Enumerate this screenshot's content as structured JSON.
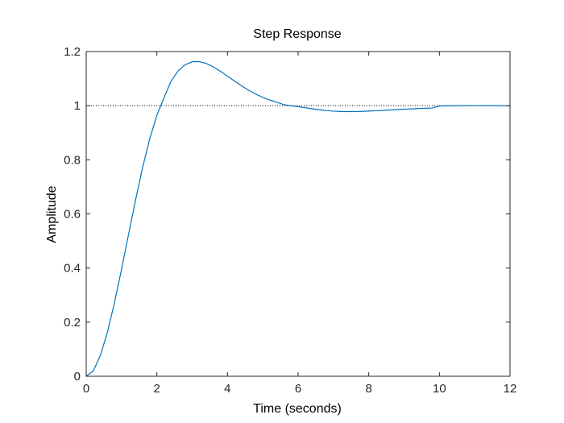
{
  "chart_data": {
    "type": "line",
    "title": "Step Response",
    "xlabel": "Time (seconds)",
    "ylabel": "Amplitude",
    "xlim": [
      0,
      12
    ],
    "ylim": [
      0,
      1.2
    ],
    "x_ticks": [
      "0",
      "2",
      "4",
      "6",
      "8",
      "10",
      "12"
    ],
    "y_ticks": [
      "0",
      "0.2",
      "0.4",
      "0.6",
      "0.8",
      "1",
      "1.2"
    ],
    "grid": false,
    "legend": "none",
    "reference_line": {
      "y": 1,
      "style": "dotted",
      "color": "#000000"
    },
    "series": [
      {
        "color": "#0072bd",
        "x": [
          0,
          0.2,
          0.4,
          0.6,
          0.8,
          1.0,
          1.2,
          1.4,
          1.6,
          1.8,
          2.0,
          2.2,
          2.4,
          2.6,
          2.8,
          3.0,
          3.2,
          3.4,
          3.6,
          3.8,
          4.0,
          4.2,
          4.4,
          4.6,
          4.8,
          5.0,
          5.2,
          5.4,
          5.6,
          5.8,
          6.0,
          6.2,
          6.4,
          6.6,
          6.8,
          7.0,
          7.2,
          7.4,
          7.6,
          7.8,
          8.0,
          8.2,
          8.4,
          8.6,
          8.8,
          9.0,
          9.2,
          9.4,
          9.6,
          9.8,
          10.0,
          10.2,
          10.4,
          10.6,
          10.8,
          11.0,
          11.2,
          11.4,
          11.6,
          11.8,
          12.0
        ],
        "y": [
          0,
          0.0198,
          0.0764,
          0.1628,
          0.2718,
          0.3952,
          0.525,
          0.6533,
          0.773,
          0.8782,
          0.9643,
          1.0285,
          1.0901,
          1.1284,
          1.151,
          1.1622,
          1.163,
          1.1559,
          1.1433,
          1.1272,
          1.1093,
          1.091,
          1.0733,
          1.0571,
          1.0428,
          1.0306,
          1.0206,
          1.0127,
          1.0038,
          0.9994,
          0.9963,
          0.9927,
          0.9886,
          0.9849,
          0.982,
          0.9799,
          0.9786,
          0.9781,
          0.9783,
          0.979,
          0.98,
          0.9813,
          0.9827,
          0.9842,
          0.9856,
          0.987,
          0.9882,
          0.9894,
          0.9904,
          0.9914,
          0.999,
          0.9994,
          0.9997,
          1.0,
          1.0002,
          1.0003,
          1.0003,
          1.0002,
          1.0001,
          1.0,
          0.9999
        ]
      }
    ]
  }
}
